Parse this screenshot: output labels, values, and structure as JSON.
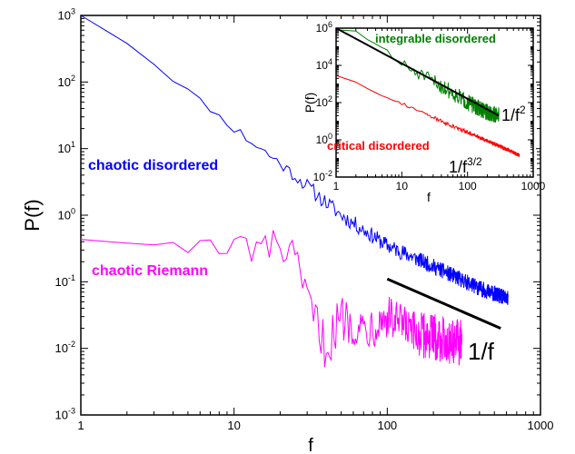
{
  "chart_data": [
    {
      "type": "line",
      "xscale": "log",
      "yscale": "log",
      "xlim": [
        1,
        1000
      ],
      "ylim": [
        0.001,
        1000
      ],
      "xlabel": "f",
      "ylabel": "P(f)",
      "xticks": [
        {
          "value": 1,
          "label": "1"
        },
        {
          "value": 10,
          "label": "10"
        },
        {
          "value": 100,
          "label": "100"
        },
        {
          "value": 1000,
          "label": "1000"
        }
      ],
      "yticks": [
        {
          "value": 0.001,
          "base": "10",
          "exp": "-3"
        },
        {
          "value": 0.01,
          "base": "10",
          "exp": "-2"
        },
        {
          "value": 0.1,
          "base": "10",
          "exp": "-1"
        },
        {
          "value": 1,
          "base": "10",
          "exp": "0"
        },
        {
          "value": 10,
          "base": "10",
          "exp": "1"
        },
        {
          "value": 100,
          "base": "10",
          "exp": "2"
        },
        {
          "value": 1000,
          "base": "10",
          "exp": "3"
        }
      ],
      "grid": false,
      "series": [
        {
          "name": "chaotic disordered",
          "color": "#0000ff",
          "x": [
            1,
            1.5,
            2,
            3,
            5,
            10,
            20,
            50,
            100,
            200,
            400,
            614
          ],
          "y": [
            1700,
            900,
            400,
            190,
            75,
            20,
            6,
            1.0,
            0.35,
            0.17,
            0.08,
            0.055
          ]
        },
        {
          "name": "chaotic Riemann",
          "color": "#ff00ff",
          "x": [
            1,
            1.5,
            2,
            3,
            4,
            5,
            6,
            8,
            10,
            12,
            15,
            20,
            25,
            30,
            40,
            50,
            70,
            100,
            150,
            200,
            250,
            307
          ],
          "y": [
            0.5,
            0.5,
            0.5,
            0.3,
            0.35,
            0.3,
            0.45,
            0.25,
            0.3,
            0.35,
            0.3,
            0.35,
            0.2,
            0.05,
            0.01,
            0.03,
            0.02,
            0.03,
            0.016,
            0.015,
            0.013,
            0.012
          ]
        }
      ],
      "reference_lines": [
        {
          "label": "1/f",
          "x": [
            100,
            550
          ],
          "y": [
            0.11,
            0.02
          ]
        }
      ]
    },
    {
      "type": "line",
      "xscale": "log",
      "yscale": "log",
      "xlim": [
        1,
        1000
      ],
      "ylim": [
        0.01,
        1000000
      ],
      "xlabel": "f",
      "ylabel": "P(f)",
      "xticks": [
        {
          "value": 1,
          "label": "1"
        },
        {
          "value": 10,
          "label": "10"
        },
        {
          "value": 100,
          "label": "100"
        },
        {
          "value": 1000,
          "label": "1000"
        }
      ],
      "yticks": [
        {
          "value": 0.01,
          "base": "10",
          "exp": "-2"
        },
        {
          "value": 1,
          "base": "10",
          "exp": "0"
        },
        {
          "value": 100,
          "base": "10",
          "exp": "2"
        },
        {
          "value": 10000,
          "base": "10",
          "exp": "4"
        },
        {
          "value": 1000000,
          "base": "10",
          "exp": "6"
        }
      ],
      "grid": false,
      "series": [
        {
          "name": "integrable disordered",
          "color": "#008000",
          "x": [
            1,
            2,
            3,
            5,
            10,
            20,
            50,
            100,
            200,
            300
          ],
          "y": [
            1000000,
            500000,
            200000,
            100000,
            10000,
            3000,
            500,
            100,
            30,
            20
          ]
        },
        {
          "name": "critical disordered",
          "color": "#ff0000",
          "x": [
            1,
            2,
            5,
            10,
            20,
            50,
            100,
            200,
            400,
            614
          ],
          "y": [
            3000,
            1200,
            250,
            90,
            30,
            7,
            2.5,
            0.9,
            0.3,
            0.15
          ]
        }
      ],
      "reference_lines": [
        {
          "label_base": "1/f",
          "label_exp": "2",
          "x": [
            1,
            300
          ],
          "y": [
            1000000,
            20
          ]
        }
      ],
      "annotations": [
        {
          "label_base": "1/f",
          "label_exp": "3/2"
        }
      ]
    }
  ]
}
